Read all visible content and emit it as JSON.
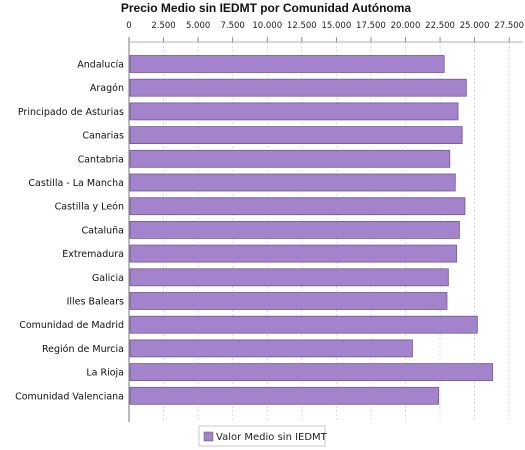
{
  "chart_data": {
    "type": "bar",
    "orientation": "horizontal",
    "title": "Precio Medio sin IEDMT por Comunidad Autónoma",
    "xlim": [
      0,
      28500
    ],
    "tick_values": [
      0,
      2500,
      5000,
      7500,
      10000,
      12500,
      15000,
      17500,
      20000,
      22500,
      25000,
      27500
    ],
    "tick_labels": [
      "0",
      "2.500",
      "5.000",
      "7.500",
      "10.000",
      "12.500",
      "15.000",
      "17.500",
      "20.000",
      "22.500",
      "25.000",
      "27.500"
    ],
    "grid": true,
    "legend_position": "bottom",
    "categories": [
      "Andalucía",
      "Aragón",
      "Principado de Asturias",
      "Canarias",
      "Cantabria",
      "Castilla - La Mancha",
      "Castilla y León",
      "Cataluña",
      "Extremadura",
      "Galicia",
      "Illes Balears",
      "Comunidad de Madrid",
      "Región de Murcia",
      "La Rioja",
      "Comunidad Valenciana"
    ],
    "series": [
      {
        "name": "Valor Medio sin IEDMT",
        "color": "#a283cc",
        "values": [
          22800,
          24400,
          23800,
          24100,
          23200,
          23600,
          24300,
          23900,
          23700,
          23100,
          23000,
          25200,
          20500,
          26300,
          22400
        ]
      }
    ]
  }
}
